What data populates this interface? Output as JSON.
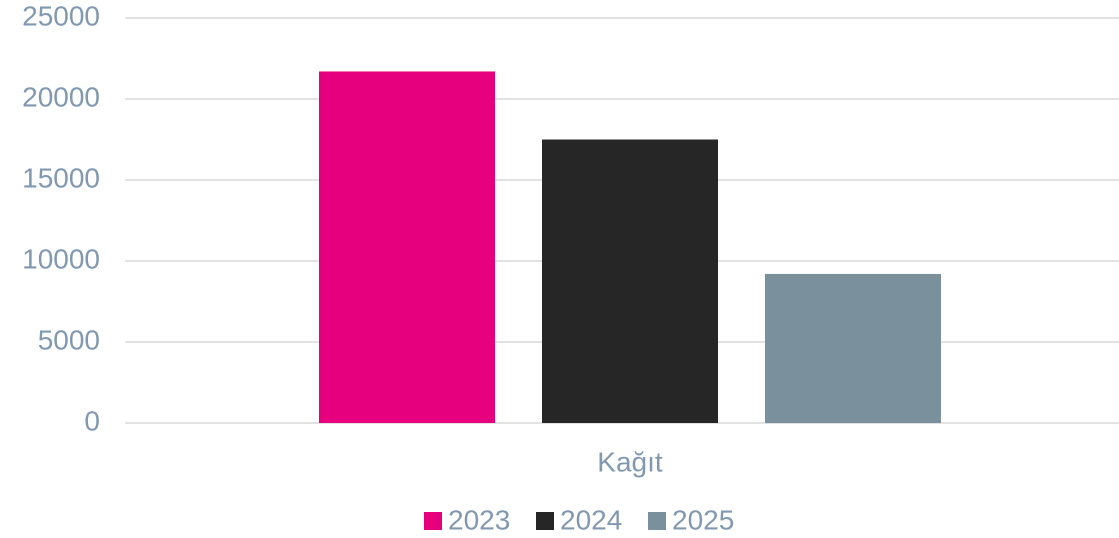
{
  "chart_data": {
    "type": "bar",
    "categories": [
      "Kağıt"
    ],
    "series": [
      {
        "name": "2023",
        "color": "#e6007e",
        "values": [
          21700
        ]
      },
      {
        "name": "2024",
        "color": "#262626",
        "values": [
          17500
        ]
      },
      {
        "name": "2025",
        "color": "#7a909c",
        "values": [
          9200
        ]
      }
    ],
    "ylim": [
      0,
      25000
    ],
    "yticks": [
      0,
      5000,
      10000,
      15000,
      20000,
      25000
    ],
    "grid": true,
    "legend": "bottom"
  }
}
